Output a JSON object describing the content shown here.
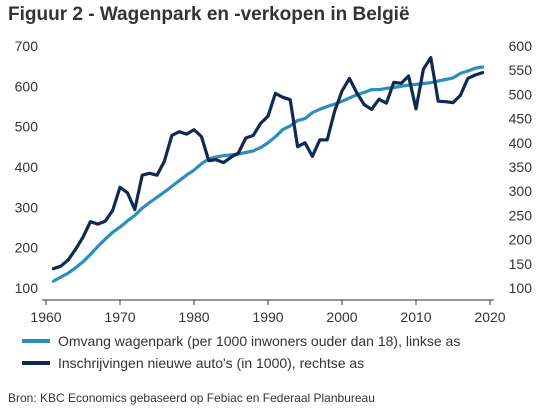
{
  "chart_data": {
    "type": "line",
    "title": "Figuur 2 - Wagenpark en -verkopen in België",
    "xlim": [
      1960,
      2020
    ],
    "x_ticks": [
      1960,
      1970,
      1980,
      1990,
      2000,
      2010,
      2020
    ],
    "left_axis": {
      "ylim": [
        100,
        700
      ],
      "ticks": [
        100,
        200,
        300,
        400,
        500,
        600,
        700
      ]
    },
    "right_axis": {
      "ylim": [
        100,
        600
      ],
      "ticks": [
        100,
        150,
        200,
        250,
        300,
        350,
        400,
        450,
        500,
        550,
        600
      ]
    },
    "grid": false,
    "legend_placement": "bottom",
    "series": [
      {
        "name": "Omvang wagenpark (per 1000 inwoners ouder dan 18), linkse as",
        "axis": "left",
        "color": "#2a8fbd",
        "x": [
          1961,
          1962,
          1963,
          1964,
          1965,
          1966,
          1967,
          1968,
          1969,
          1970,
          1971,
          1972,
          1973,
          1974,
          1975,
          1976,
          1977,
          1978,
          1979,
          1980,
          1981,
          1982,
          1983,
          1984,
          1985,
          1986,
          1987,
          1988,
          1989,
          1990,
          1991,
          1992,
          1993,
          1994,
          1995,
          1996,
          1997,
          1998,
          1999,
          2000,
          2001,
          2002,
          2003,
          2004,
          2005,
          2006,
          2007,
          2008,
          2009,
          2010,
          2011,
          2012,
          2013,
          2014,
          2015,
          2016,
          2017,
          2018,
          2019
        ],
        "values": [
          117,
          127,
          137,
          150,
          165,
          183,
          203,
          221,
          238,
          251,
          266,
          280,
          298,
          312,
          325,
          338,
          352,
          366,
          380,
          392,
          408,
          420,
          425,
          428,
          430,
          432,
          436,
          440,
          448,
          460,
          475,
          493,
          502,
          515,
          520,
          535,
          543,
          550,
          556,
          563,
          571,
          579,
          585,
          592,
          592,
          595,
          597,
          600,
          603,
          605,
          607,
          609,
          613,
          617,
          621,
          632,
          638,
          645,
          648
        ]
      },
      {
        "name": "Inschrijvingen nieuwe auto's (in 1000), rechtse as",
        "axis": "right",
        "color": "#0e2a4e",
        "x": [
          1961,
          1962,
          1963,
          1964,
          1965,
          1966,
          1967,
          1968,
          1969,
          1970,
          1971,
          1972,
          1973,
          1974,
          1975,
          1976,
          1977,
          1978,
          1979,
          1980,
          1981,
          1982,
          1983,
          1984,
          1985,
          1986,
          1987,
          1988,
          1989,
          1990,
          1991,
          1992,
          1993,
          1994,
          1995,
          1996,
          1997,
          1998,
          1999,
          2000,
          2001,
          2002,
          2003,
          2004,
          2005,
          2006,
          2007,
          2008,
          2009,
          2010,
          2011,
          2012,
          2013,
          2014,
          2015,
          2016,
          2017,
          2018,
          2019
        ],
        "values": [
          140,
          145,
          158,
          180,
          205,
          237,
          232,
          238,
          260,
          308,
          297,
          262,
          333,
          337,
          333,
          362,
          415,
          423,
          418,
          427,
          413,
          363,
          365,
          359,
          370,
          379,
          410,
          415,
          440,
          455,
          502,
          494,
          489,
          392,
          400,
          372,
          406,
          406,
          465,
          507,
          533,
          503,
          479,
          469,
          490,
          482,
          525,
          523,
          538,
          470,
          552,
          576,
          486,
          485,
          483,
          498,
          533,
          540,
          545
        ]
      }
    ],
    "source": "Bron: KBC Economics gebaseerd op Febiac en Federaal Planbureau"
  }
}
